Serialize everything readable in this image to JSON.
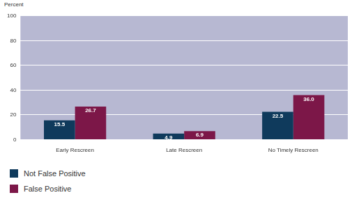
{
  "chart_data": {
    "type": "bar",
    "ylabel": "Percent",
    "categories": [
      "Early Rescreen",
      "Late Rescreen",
      "No Timely Rescreen"
    ],
    "series": [
      {
        "name": "Not False Positive",
        "color": "#0f3a5c",
        "values": [
          15.5,
          4.9,
          22.5
        ],
        "value_labels": [
          "15.5",
          "4.9",
          "22.5"
        ]
      },
      {
        "name": "False Positive",
        "color": "#7c1748",
        "values": [
          26.7,
          6.9,
          36.0
        ],
        "value_labels": [
          "26.7",
          "6.9",
          "36.0"
        ]
      }
    ],
    "ylim": [
      0,
      100
    ],
    "yticks": [
      0,
      20,
      40,
      60,
      80,
      100
    ],
    "grid": true,
    "legend": "bottom-left",
    "data_labels": true
  }
}
